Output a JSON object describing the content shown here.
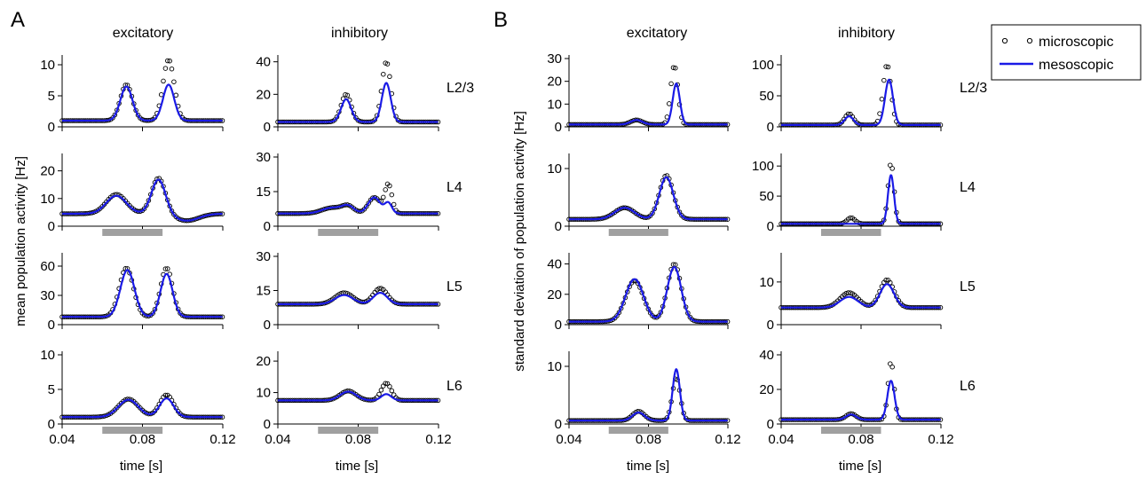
{
  "figure": {
    "panel_labels": [
      "A",
      "B"
    ],
    "column_titles": {
      "excitatory": "excitatory",
      "inhibitory": "inhibitory"
    },
    "row_labels": [
      "L2/3",
      "L4",
      "L5",
      "L6"
    ],
    "ylabel_A": "mean population activity [Hz]",
    "ylabel_B": "standard deviation of population activity [Hz]",
    "xlabel": "time [s]",
    "legend": {
      "microscopic": "microscopic",
      "mesoscopic": "mesoscopic"
    },
    "colors": {
      "mesoscopic": "#1a1ae6",
      "microscopic": "#000000",
      "stimulus_bar": "#a0a0a0"
    }
  },
  "chart_data": [
    {
      "panel": "A",
      "column": "excitatory",
      "layer": "L2/3",
      "type": "line",
      "xlim": [
        0.04,
        0.12
      ],
      "ylim": [
        0,
        11
      ],
      "yticks": [
        0,
        5,
        10
      ],
      "xticks": [
        0.04,
        0.08,
        0.12
      ],
      "stimulus": null,
      "series": [
        {
          "name": "microscopic",
          "style": "markers",
          "peaks": [
            [
              0.072,
              6.8,
              0.003
            ],
            [
              0.093,
              10.8,
              0.0028
            ]
          ],
          "baseline": 1.0
        },
        {
          "name": "mesoscopic",
          "style": "line",
          "peaks": [
            [
              0.072,
              6.5,
              0.003
            ],
            [
              0.093,
              6.8,
              0.0028
            ]
          ],
          "baseline": 1.0
        }
      ]
    },
    {
      "panel": "A",
      "column": "inhibitory",
      "layer": "L2/3",
      "type": "line",
      "xlim": [
        0.04,
        0.12
      ],
      "ylim": [
        0,
        42
      ],
      "yticks": [
        0,
        20,
        40
      ],
      "xticks": [
        0.04,
        0.08,
        0.12
      ],
      "stimulus": null,
      "series": [
        {
          "name": "microscopic",
          "style": "markers",
          "peaks": [
            [
              0.074,
              20,
              0.0025
            ],
            [
              0.094,
              40,
              0.0022
            ]
          ],
          "baseline": 3
        },
        {
          "name": "mesoscopic",
          "style": "line",
          "peaks": [
            [
              0.074,
              17,
              0.0025
            ],
            [
              0.094,
              27,
              0.0022
            ]
          ],
          "baseline": 3
        }
      ]
    },
    {
      "panel": "A",
      "column": "excitatory",
      "layer": "L4",
      "type": "line",
      "xlim": [
        0.04,
        0.12
      ],
      "ylim": [
        0,
        25
      ],
      "yticks": [
        0,
        10,
        20
      ],
      "xticks": [
        0.04,
        0.08,
        0.12
      ],
      "stimulus": [
        0.06,
        0.09
      ],
      "series": [
        {
          "name": "microscopic",
          "style": "markers",
          "peaks": [
            [
              0.067,
              11.5,
              0.005
            ],
            [
              0.088,
              17.5,
              0.0035
            ]
          ],
          "baseline": 4.5,
          "dip": [
            0.102,
            -2.5,
            0.006
          ]
        },
        {
          "name": "mesoscopic",
          "style": "line",
          "peaks": [
            [
              0.067,
              11,
              0.005
            ],
            [
              0.088,
              17,
              0.0035
            ]
          ],
          "baseline": 4.5,
          "dip": [
            0.102,
            -2.5,
            0.006
          ]
        }
      ]
    },
    {
      "panel": "A",
      "column": "inhibitory",
      "layer": "L4",
      "type": "line",
      "xlim": [
        0.04,
        0.12
      ],
      "ylim": [
        0,
        30
      ],
      "yticks": [
        0,
        15,
        30
      ],
      "xticks": [
        0.04,
        0.08,
        0.12
      ],
      "stimulus": [
        0.06,
        0.09
      ],
      "series": [
        {
          "name": "microscopic",
          "style": "markers",
          "peaks": [
            [
              0.067,
              8,
              0.005
            ],
            [
              0.075,
              8.5,
              0.003
            ],
            [
              0.088,
              12.5,
              0.003
            ],
            [
              0.095,
              18,
              0.0018
            ]
          ],
          "baseline": 5.5
        },
        {
          "name": "mesoscopic",
          "style": "line",
          "peaks": [
            [
              0.067,
              8,
              0.005
            ],
            [
              0.075,
              8.5,
              0.003
            ],
            [
              0.088,
              12.5,
              0.003
            ],
            [
              0.095,
              10,
              0.0018
            ]
          ],
          "baseline": 5.5
        }
      ]
    },
    {
      "panel": "A",
      "column": "excitatory",
      "layer": "L5",
      "type": "line",
      "xlim": [
        0.04,
        0.12
      ],
      "ylim": [
        0,
        70
      ],
      "yticks": [
        0,
        30,
        60
      ],
      "xticks": [
        0.04,
        0.08,
        0.12
      ],
      "stimulus": null,
      "series": [
        {
          "name": "microscopic",
          "style": "markers",
          "peaks": [
            [
              0.072,
              58,
              0.0035
            ],
            [
              0.092,
              58,
              0.003
            ]
          ],
          "baseline": 8
        },
        {
          "name": "mesoscopic",
          "style": "line",
          "peaks": [
            [
              0.0725,
              56,
              0.0035
            ],
            [
              0.092,
              52,
              0.003
            ]
          ],
          "baseline": 8
        }
      ]
    },
    {
      "panel": "A",
      "column": "inhibitory",
      "layer": "L5",
      "type": "line",
      "xlim": [
        0.04,
        0.12
      ],
      "ylim": [
        0,
        30
      ],
      "yticks": [
        0,
        15,
        30
      ],
      "xticks": [
        0.04,
        0.08,
        0.12
      ],
      "stimulus": null,
      "series": [
        {
          "name": "microscopic",
          "style": "markers",
          "peaks": [
            [
              0.073,
              14,
              0.0045
            ],
            [
              0.091,
              16,
              0.0035
            ]
          ],
          "baseline": 9
        },
        {
          "name": "mesoscopic",
          "style": "line",
          "peaks": [
            [
              0.073,
              13,
              0.0045
            ],
            [
              0.091,
              14,
              0.0035
            ]
          ],
          "baseline": 9
        }
      ]
    },
    {
      "panel": "A",
      "column": "excitatory",
      "layer": "L6",
      "type": "line",
      "xlim": [
        0.04,
        0.12
      ],
      "ylim": [
        0,
        10
      ],
      "yticks": [
        0,
        5,
        10
      ],
      "xticks": [
        0.04,
        0.08,
        0.12
      ],
      "stimulus": [
        0.06,
        0.09
      ],
      "series": [
        {
          "name": "microscopic",
          "style": "markers",
          "peaks": [
            [
              0.073,
              3.6,
              0.005
            ],
            [
              0.092,
              4.2,
              0.0035
            ]
          ],
          "baseline": 1.0
        },
        {
          "name": "mesoscopic",
          "style": "line",
          "peaks": [
            [
              0.073,
              3.5,
              0.005
            ],
            [
              0.092,
              3.7,
              0.0035
            ]
          ],
          "baseline": 1.0
        }
      ]
    },
    {
      "panel": "A",
      "column": "inhibitory",
      "layer": "L6",
      "type": "line",
      "xlim": [
        0.04,
        0.12
      ],
      "ylim": [
        0,
        22
      ],
      "yticks": [
        0,
        10,
        20
      ],
      "xticks": [
        0.04,
        0.08,
        0.12
      ],
      "stimulus": [
        0.06,
        0.09
      ],
      "series": [
        {
          "name": "microscopic",
          "style": "markers",
          "peaks": [
            [
              0.075,
              10.5,
              0.004
            ],
            [
              0.094,
              13,
              0.0025
            ]
          ],
          "baseline": 7.5
        },
        {
          "name": "mesoscopic",
          "style": "line",
          "peaks": [
            [
              0.075,
              10.3,
              0.004
            ],
            [
              0.094,
              9.5,
              0.0025
            ]
          ],
          "baseline": 7.5
        }
      ]
    },
    {
      "panel": "B",
      "column": "excitatory",
      "layer": "L2/3",
      "type": "line",
      "xlim": [
        0.04,
        0.12
      ],
      "ylim": [
        0,
        30
      ],
      "yticks": [
        0,
        10,
        20,
        30
      ],
      "xticks": [
        0.04,
        0.08,
        0.12
      ],
      "stimulus": null,
      "series": [
        {
          "name": "microscopic",
          "style": "markers",
          "peaks": [
            [
              0.074,
              3,
              0.003
            ],
            [
              0.093,
              27,
              0.0018
            ]
          ],
          "baseline": 1
        },
        {
          "name": "mesoscopic",
          "style": "line",
          "peaks": [
            [
              0.074,
              3,
              0.003
            ],
            [
              0.094,
              19,
              0.0018
            ]
          ],
          "baseline": 1
        }
      ]
    },
    {
      "panel": "B",
      "column": "inhibitory",
      "layer": "L2/3",
      "type": "line",
      "xlim": [
        0.04,
        0.12
      ],
      "ylim": [
        0,
        110
      ],
      "yticks": [
        0,
        50,
        100
      ],
      "xticks": [
        0.04,
        0.08,
        0.12
      ],
      "stimulus": null,
      "series": [
        {
          "name": "microscopic",
          "style": "markers",
          "peaks": [
            [
              0.074,
              21,
              0.0022
            ],
            [
              0.093,
              100,
              0.002
            ]
          ],
          "baseline": 3
        },
        {
          "name": "mesoscopic",
          "style": "line",
          "peaks": [
            [
              0.074,
              17,
              0.0022
            ],
            [
              0.094,
              76,
              0.002
            ]
          ],
          "baseline": 3
        }
      ]
    },
    {
      "panel": "B",
      "column": "excitatory",
      "layer": "L4",
      "type": "line",
      "xlim": [
        0.04,
        0.12
      ],
      "ylim": [
        0,
        12
      ],
      "yticks": [
        0,
        10
      ],
      "xticks": [
        0.04,
        0.08,
        0.12
      ],
      "stimulus": [
        0.06,
        0.09
      ],
      "series": [
        {
          "name": "microscopic",
          "style": "markers",
          "peaks": [
            [
              0.068,
              3.2,
              0.005
            ],
            [
              0.089,
              8.8,
              0.0035
            ]
          ],
          "baseline": 1.2
        },
        {
          "name": "mesoscopic",
          "style": "line",
          "peaks": [
            [
              0.068,
              3.2,
              0.005
            ],
            [
              0.089,
              8.5,
              0.0035
            ]
          ],
          "baseline": 1.2
        }
      ]
    },
    {
      "panel": "B",
      "column": "inhibitory",
      "layer": "L4",
      "type": "line",
      "xlim": [
        0.04,
        0.12
      ],
      "ylim": [
        0,
        115
      ],
      "yticks": [
        0,
        50,
        100
      ],
      "xticks": [
        0.04,
        0.08,
        0.12
      ],
      "stimulus": [
        0.06,
        0.09
      ],
      "series": [
        {
          "name": "microscopic",
          "style": "markers",
          "peaks": [
            [
              0.075,
              14,
              0.002
            ],
            [
              0.095,
              105,
              0.0015
            ]
          ],
          "baseline": 4
        },
        {
          "name": "mesoscopic",
          "style": "line",
          "peaks": [
            [
              0.075,
              4,
              0.002
            ],
            [
              0.095,
              85,
              0.0015
            ]
          ],
          "baseline": 4
        }
      ]
    },
    {
      "panel": "B",
      "column": "excitatory",
      "layer": "L5",
      "type": "line",
      "xlim": [
        0.04,
        0.12
      ],
      "ylim": [
        0,
        45
      ],
      "yticks": [
        0,
        20,
        40
      ],
      "xticks": [
        0.04,
        0.08,
        0.12
      ],
      "stimulus": null,
      "series": [
        {
          "name": "microscopic",
          "style": "markers",
          "peaks": [
            [
              0.073,
              29,
              0.0045
            ],
            [
              0.093,
              40,
              0.0035
            ]
          ],
          "baseline": 2
        },
        {
          "name": "mesoscopic",
          "style": "line",
          "peaks": [
            [
              0.073,
              30,
              0.0045
            ],
            [
              0.093,
              38,
              0.0035
            ]
          ],
          "baseline": 2
        }
      ]
    },
    {
      "panel": "B",
      "column": "inhibitory",
      "layer": "L5",
      "type": "line",
      "xlim": [
        0.04,
        0.12
      ],
      "ylim": [
        0,
        16
      ],
      "yticks": [
        0,
        10
      ],
      "xticks": [
        0.04,
        0.08,
        0.12
      ],
      "stimulus": null,
      "series": [
        {
          "name": "microscopic",
          "style": "markers",
          "peaks": [
            [
              0.074,
              7.5,
              0.0045
            ],
            [
              0.093,
              10.5,
              0.0035
            ]
          ],
          "baseline": 4
        },
        {
          "name": "mesoscopic",
          "style": "line",
          "peaks": [
            [
              0.074,
              6.5,
              0.0045
            ],
            [
              0.093,
              9.5,
              0.0035
            ]
          ],
          "baseline": 4
        }
      ]
    },
    {
      "panel": "B",
      "column": "excitatory",
      "layer": "L6",
      "type": "line",
      "xlim": [
        0.04,
        0.12
      ],
      "ylim": [
        0,
        12
      ],
      "yticks": [
        0,
        10
      ],
      "xticks": [
        0.04,
        0.08,
        0.12
      ],
      "stimulus": [
        0.06,
        0.09
      ],
      "series": [
        {
          "name": "microscopic",
          "style": "markers",
          "peaks": [
            [
              0.075,
              2.2,
              0.003
            ],
            [
              0.094,
              8,
              0.002
            ]
          ],
          "baseline": 0.6
        },
        {
          "name": "mesoscopic",
          "style": "line",
          "peaks": [
            [
              0.075,
              2,
              0.003
            ],
            [
              0.094,
              9.5,
              0.0018
            ]
          ],
          "baseline": 0.6
        }
      ]
    },
    {
      "panel": "B",
      "column": "inhibitory",
      "layer": "L6",
      "type": "line",
      "xlim": [
        0.04,
        0.12
      ],
      "ylim": [
        0,
        40
      ],
      "yticks": [
        0,
        20,
        40
      ],
      "xticks": [
        0.04,
        0.08,
        0.12
      ],
      "stimulus": [
        0.06,
        0.09
      ],
      "series": [
        {
          "name": "microscopic",
          "style": "markers",
          "peaks": [
            [
              0.075,
              6,
              0.0025
            ],
            [
              0.095,
              36,
              0.0015
            ]
          ],
          "baseline": 2.5
        },
        {
          "name": "mesoscopic",
          "style": "line",
          "peaks": [
            [
              0.075,
              5.5,
              0.0025
            ],
            [
              0.095,
              25,
              0.0018
            ]
          ],
          "baseline": 2.5
        }
      ]
    }
  ]
}
